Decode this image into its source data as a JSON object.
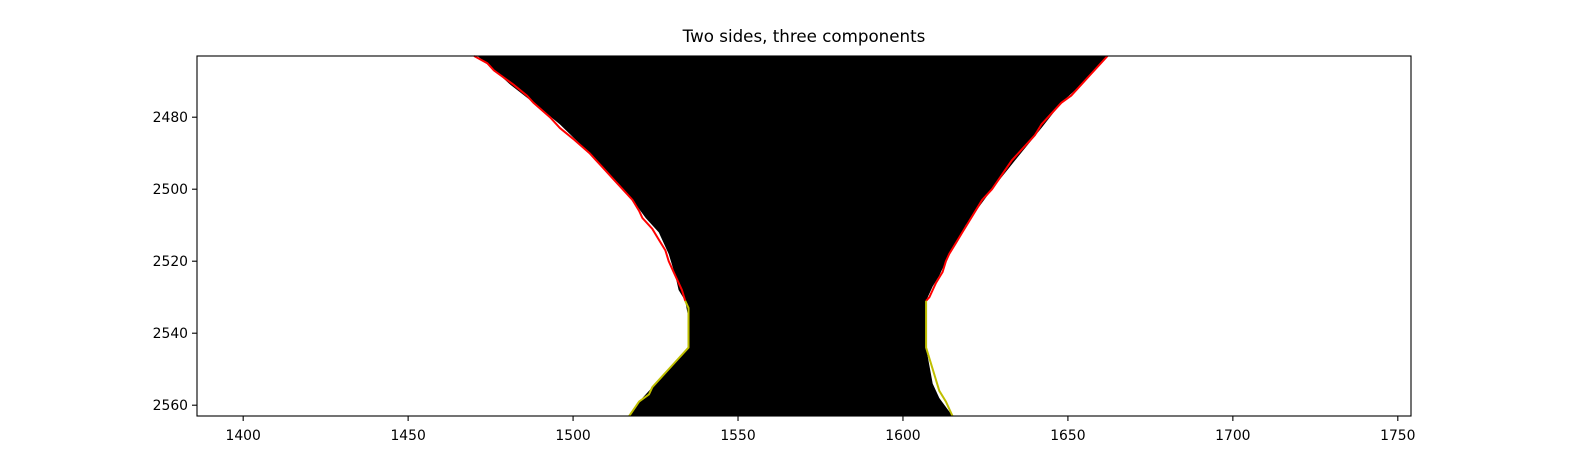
{
  "chart_data": {
    "type": "image-with-contours",
    "title": "Two sides, three components",
    "xlabel": "",
    "ylabel": "",
    "xlim": [
      1386,
      1754
    ],
    "ylim": [
      2563,
      2463
    ],
    "y_axis_inverted": true,
    "x_ticks": [
      1400,
      1450,
      1500,
      1550,
      1600,
      1650,
      1700,
      1750
    ],
    "y_ticks": [
      2480,
      2500,
      2520,
      2540,
      2560
    ],
    "grid": false,
    "legend": "none",
    "colors": {
      "background_region": "#ffffff",
      "foreground_region": "#000000",
      "outer_contour": "#ff0000",
      "inner_contour": "#bfbf00"
    },
    "mask_region": {
      "left_edge": [
        [
          1471,
          2463
        ],
        [
          1475,
          2466
        ],
        [
          1481,
          2471
        ],
        [
          1488,
          2476
        ],
        [
          1496,
          2482
        ],
        [
          1505,
          2490
        ],
        [
          1511,
          2496
        ],
        [
          1518,
          2503
        ],
        [
          1522,
          2508
        ],
        [
          1526,
          2512
        ],
        [
          1529,
          2518
        ],
        [
          1531,
          2524
        ],
        [
          1532,
          2528
        ],
        [
          1534,
          2531
        ],
        [
          1535,
          2536
        ],
        [
          1535,
          2544
        ],
        [
          1530,
          2549
        ],
        [
          1525,
          2554
        ],
        [
          1521,
          2558
        ],
        [
          1517,
          2563
        ]
      ],
      "right_edge": [
        [
          1662,
          2463
        ],
        [
          1659,
          2466
        ],
        [
          1654,
          2471
        ],
        [
          1648,
          2476
        ],
        [
          1642,
          2483
        ],
        [
          1634,
          2492
        ],
        [
          1627,
          2500
        ],
        [
          1619,
          2510
        ],
        [
          1616,
          2515
        ],
        [
          1613,
          2520
        ],
        [
          1611,
          2524
        ],
        [
          1609,
          2527
        ],
        [
          1607,
          2531
        ],
        [
          1607,
          2536
        ],
        [
          1607,
          2544
        ],
        [
          1608,
          2549
        ],
        [
          1609,
          2554
        ],
        [
          1611,
          2558
        ],
        [
          1615,
          2563
        ]
      ]
    },
    "contours": [
      {
        "color": "#ff0000",
        "points": [
          [
            1470,
            2463
          ],
          [
            1474,
            2465
          ],
          [
            1476,
            2467
          ],
          [
            1482,
            2471
          ],
          [
            1486,
            2474
          ],
          [
            1488,
            2476
          ],
          [
            1493,
            2480
          ],
          [
            1496,
            2483
          ],
          [
            1500,
            2486
          ],
          [
            1505,
            2490
          ],
          [
            1507,
            2492
          ],
          [
            1509,
            2494
          ],
          [
            1512,
            2497
          ],
          [
            1515,
            2500
          ],
          [
            1518,
            2503
          ],
          [
            1520,
            2506
          ],
          [
            1521,
            2508
          ],
          [
            1524,
            2511
          ],
          [
            1526,
            2514
          ],
          [
            1528,
            2517
          ],
          [
            1529,
            2520
          ],
          [
            1530,
            2522
          ],
          [
            1532,
            2526
          ],
          [
            1533,
            2528
          ],
          [
            1534,
            2531
          ]
        ]
      },
      {
        "color": "#bfbf00",
        "points": [
          [
            1534,
            2531
          ],
          [
            1535,
            2533
          ],
          [
            1535,
            2544
          ],
          [
            1531,
            2548
          ],
          [
            1527,
            2552
          ],
          [
            1524,
            2555
          ],
          [
            1523,
            2557
          ],
          [
            1520,
            2559
          ],
          [
            1517,
            2563
          ]
        ]
      },
      {
        "color": "#ff0000",
        "points": [
          [
            1662,
            2463
          ],
          [
            1660,
            2465
          ],
          [
            1657,
            2468
          ],
          [
            1654,
            2471
          ],
          [
            1651,
            2474
          ],
          [
            1648,
            2476
          ],
          [
            1645,
            2479
          ],
          [
            1642,
            2482
          ],
          [
            1640,
            2485
          ],
          [
            1636,
            2489
          ],
          [
            1633,
            2492
          ],
          [
            1630,
            2496
          ],
          [
            1627,
            2500
          ],
          [
            1624,
            2503
          ],
          [
            1622,
            2506
          ],
          [
            1620,
            2509
          ],
          [
            1618,
            2512
          ],
          [
            1616,
            2515
          ],
          [
            1614,
            2518
          ],
          [
            1613,
            2520
          ],
          [
            1612,
            2523
          ],
          [
            1610,
            2526
          ],
          [
            1609,
            2528
          ],
          [
            1608,
            2530
          ],
          [
            1607,
            2531
          ]
        ]
      },
      {
        "color": "#bfbf00",
        "points": [
          [
            1607,
            2531
          ],
          [
            1607,
            2540
          ],
          [
            1607,
            2544
          ],
          [
            1608,
            2547
          ],
          [
            1609,
            2550
          ],
          [
            1610,
            2553
          ],
          [
            1611,
            2556
          ],
          [
            1613,
            2559
          ],
          [
            1615,
            2563
          ]
        ]
      }
    ]
  }
}
